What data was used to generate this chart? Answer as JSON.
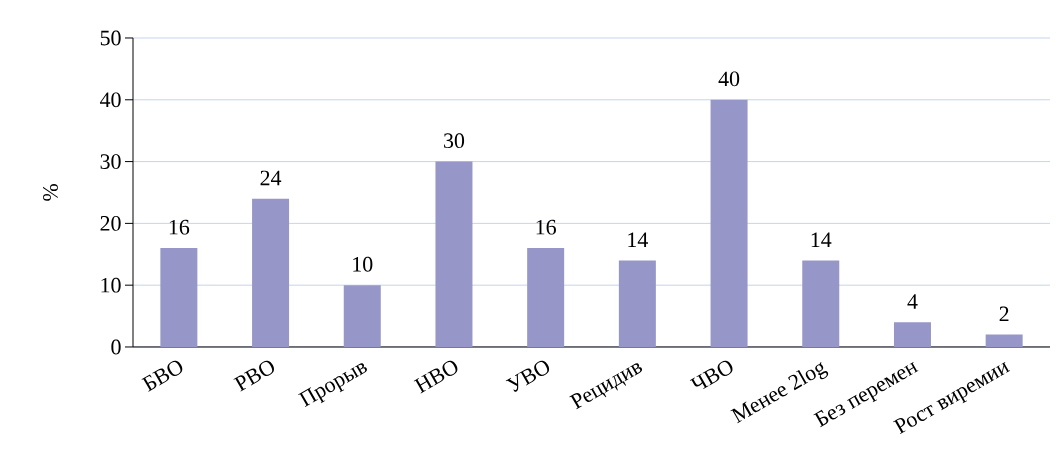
{
  "chart_data": {
    "type": "bar",
    "ylabel": "%",
    "categories": [
      "БВО",
      "РВО",
      "Прорыв",
      "НВО",
      "УВО",
      "Рецидив",
      "ЧВО",
      "Менее 2log",
      "Без перемен",
      "Рост виремии"
    ],
    "values": [
      16,
      24,
      10,
      30,
      16,
      14,
      40,
      14,
      4,
      2
    ],
    "color": "#9696c8",
    "ylim": [
      0,
      50
    ],
    "yticks": [
      0,
      10,
      20,
      30,
      40,
      50
    ],
    "grid": "y",
    "data_labels": true
  }
}
